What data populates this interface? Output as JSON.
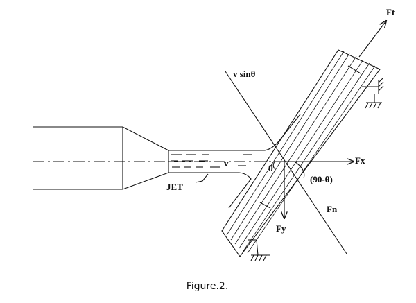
{
  "labels": {
    "ft": "Ft",
    "v_sin": "v sinθ",
    "fx": "Fx",
    "jet": "JET",
    "v": "v",
    "theta": "θ",
    "ninety_minus": "(90-θ)",
    "fn": "Fn",
    "fy": "Fy"
  },
  "caption": "Figure.2."
}
